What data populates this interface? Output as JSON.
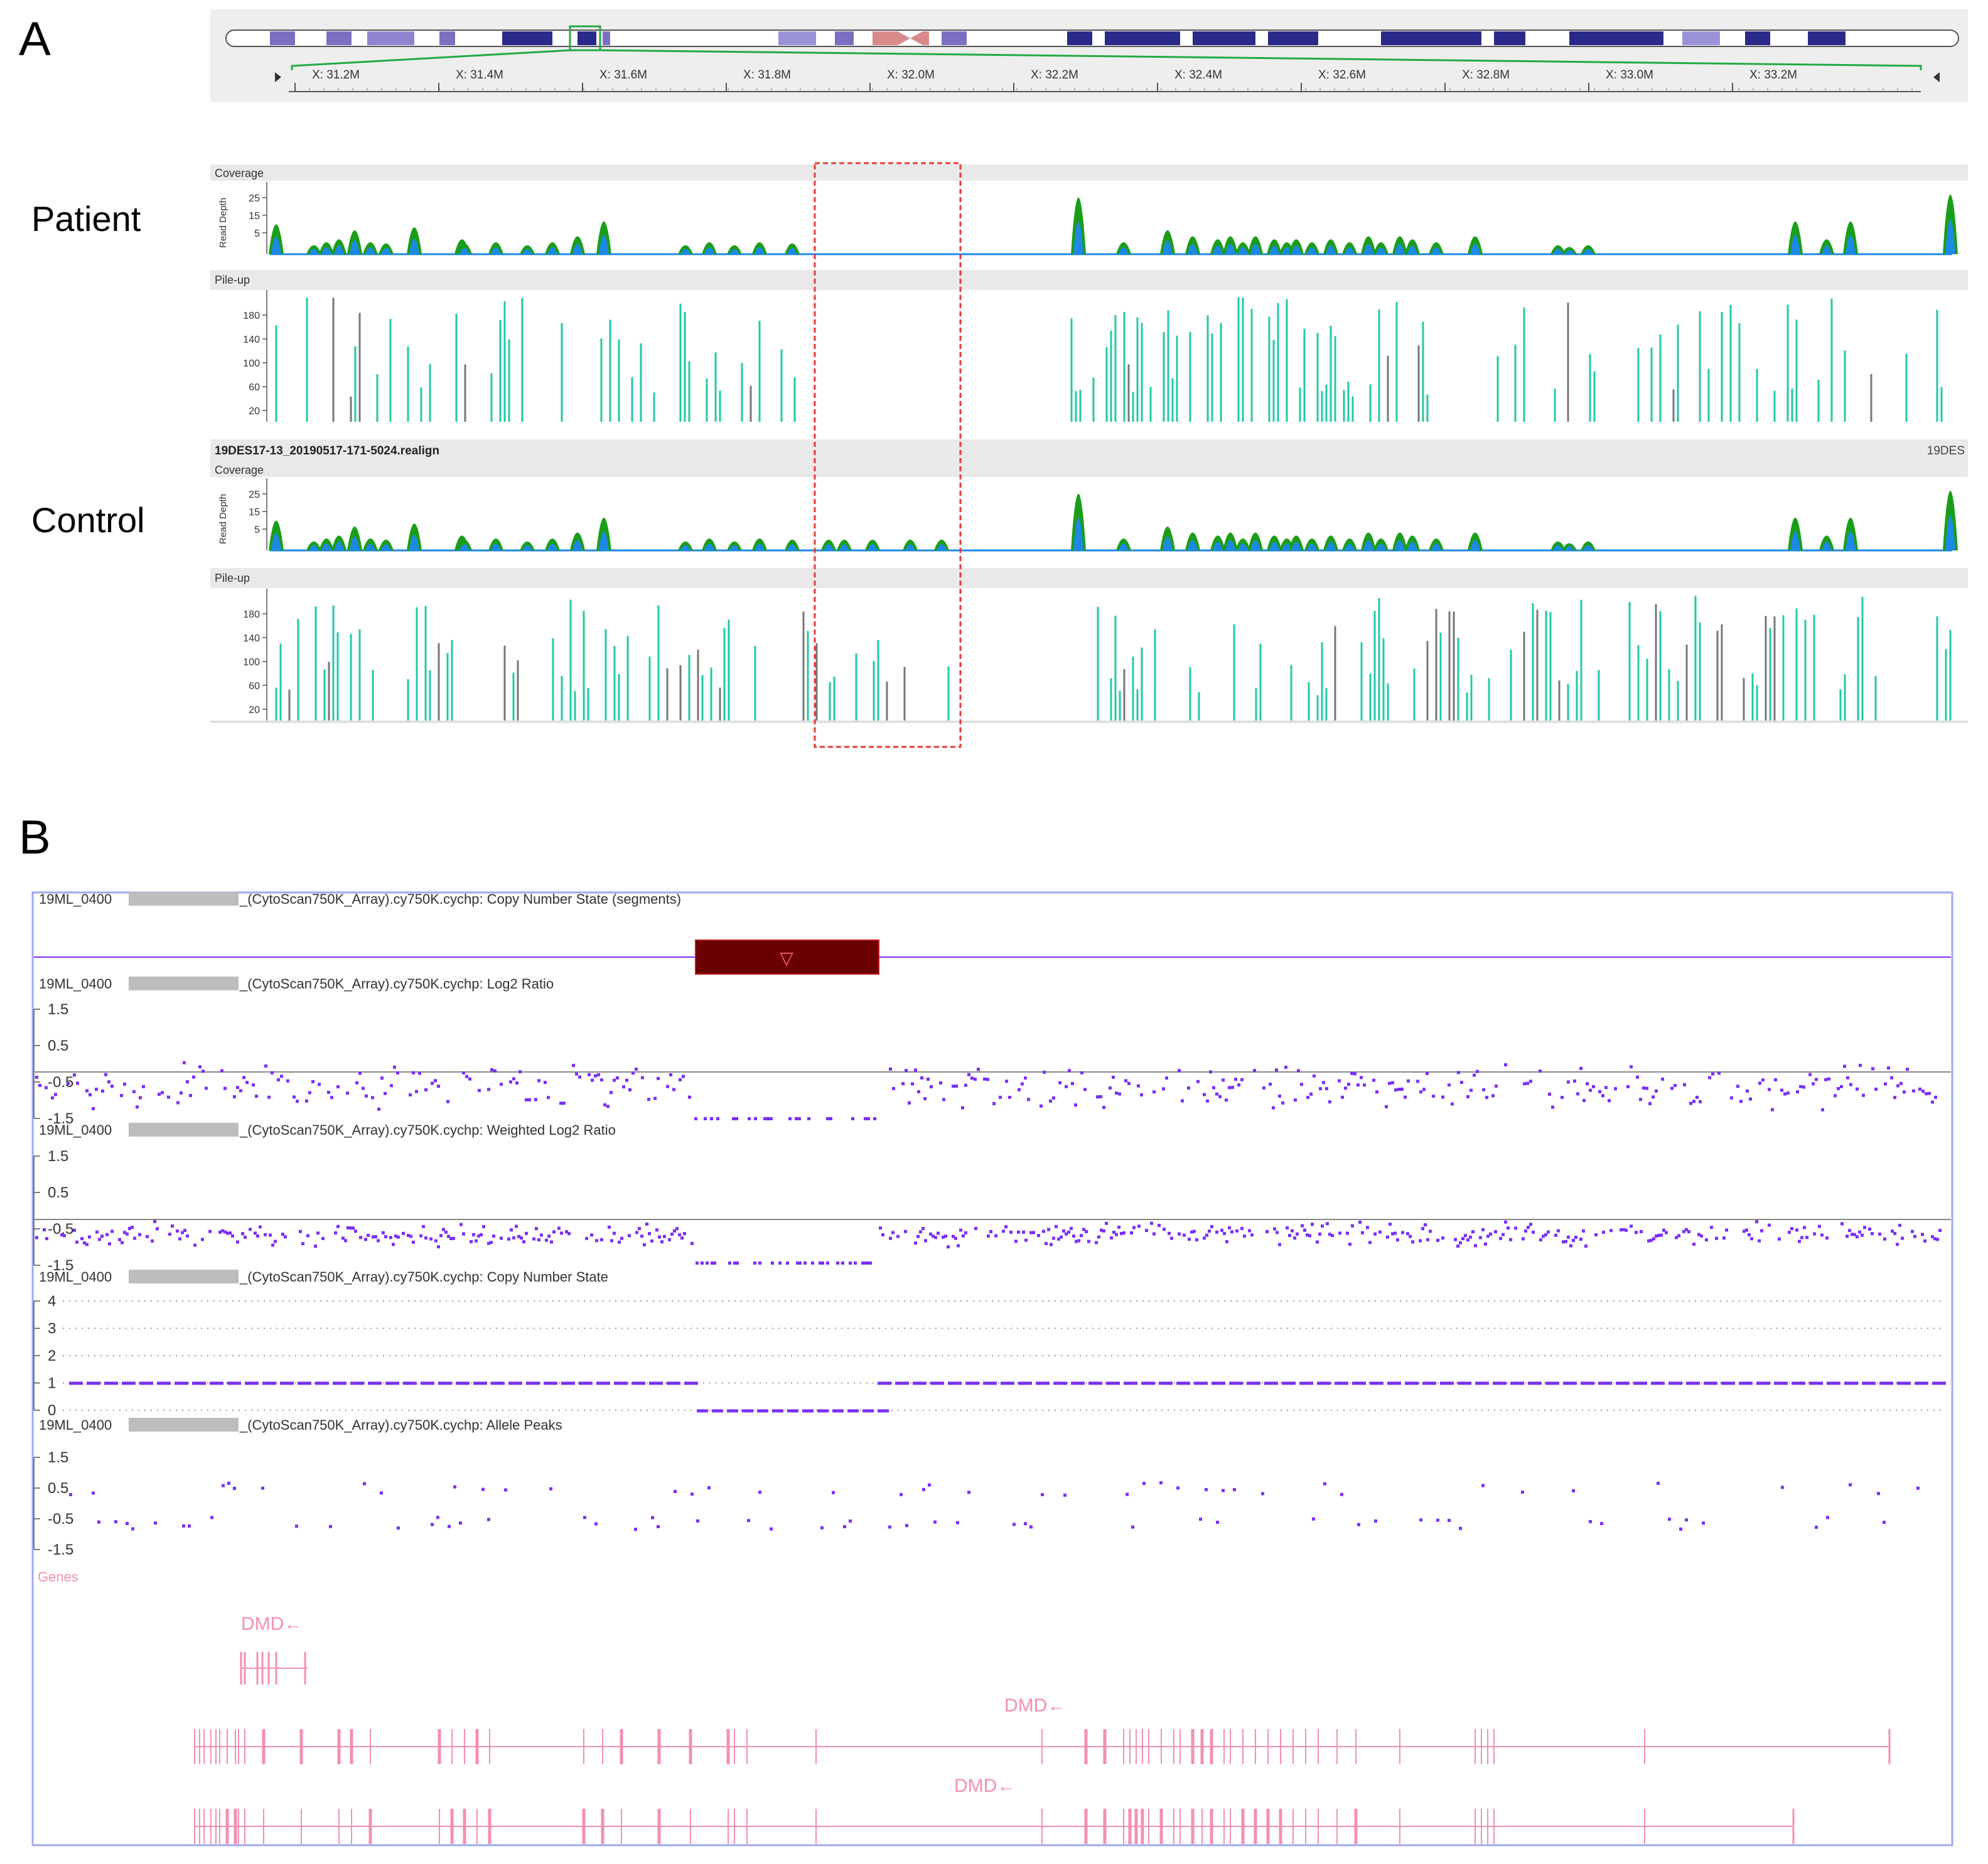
{
  "panel_a": {
    "label": "A",
    "patient_label": "Patient",
    "control_label": "Control",
    "ruler_ticks": [
      "X: 31.2M",
      "X: 31.4M",
      "X: 31.6M",
      "X: 31.8M",
      "X: 32.0M",
      "X: 32.2M",
      "X: 32.4M",
      "X: 32.6M",
      "X: 32.8M",
      "X: 33.0M",
      "X: 33.2M"
    ],
    "chrom_label": "X",
    "coverage_title": "Coverage",
    "pileup_title": "Pile-up",
    "read_depth_label": "Read Depth",
    "coverage_ticks": [
      "25",
      "15",
      "5"
    ],
    "pileup_ticks": [
      "180",
      "140",
      "100",
      "60",
      "20"
    ],
    "sample_name": "19DES17-13_20190517-171-5024.realign",
    "sample_name_right": "19DES",
    "colors": {
      "coverage_green": "#1a9e1a",
      "coverage_blue": "#1e88e5",
      "pileup": "#20c9a6",
      "box": "#e53935",
      "ideogram": "#2a2a8a",
      "centromere": "#d98b8b"
    }
  },
  "panel_b": {
    "label": "B",
    "sample_prefix": "19ML_0400",
    "tracks": [
      {
        "suffix": "_(CytoScan750K_Array).cy750K.cychp: Copy Number State (segments)"
      },
      {
        "suffix": "_(CytoScan750K_Array).cy750K.cychp: Log2 Ratio",
        "ticks": [
          "1.5",
          "0.5",
          "-0.5",
          "-1.5"
        ]
      },
      {
        "suffix": "_(CytoScan750K_Array).cy750K.cychp: Weighted Log2 Ratio",
        "ticks": [
          "1.5",
          "0.5",
          "-0.5",
          "-1.5"
        ]
      },
      {
        "suffix": "_(CytoScan750K_Array).cy750K.cychp: Copy Number State",
        "ticks": [
          "4",
          "3",
          "2",
          "1",
          "0"
        ]
      },
      {
        "suffix": "_(CytoScan750K_Array).cy750K.cychp: Allele Peaks",
        "ticks": [
          "1.5",
          "0.5",
          "-0.5",
          "-1.5"
        ]
      }
    ],
    "segment_marker": "▽",
    "genes_label": "Genes",
    "gene_labels": [
      "DMD←",
      "DMD←",
      "DMD←"
    ],
    "colors": {
      "points": "#7b2ff7",
      "segment": "#6b0000",
      "genes": "#f48fb1",
      "frame": "#9fa8f0"
    }
  }
}
